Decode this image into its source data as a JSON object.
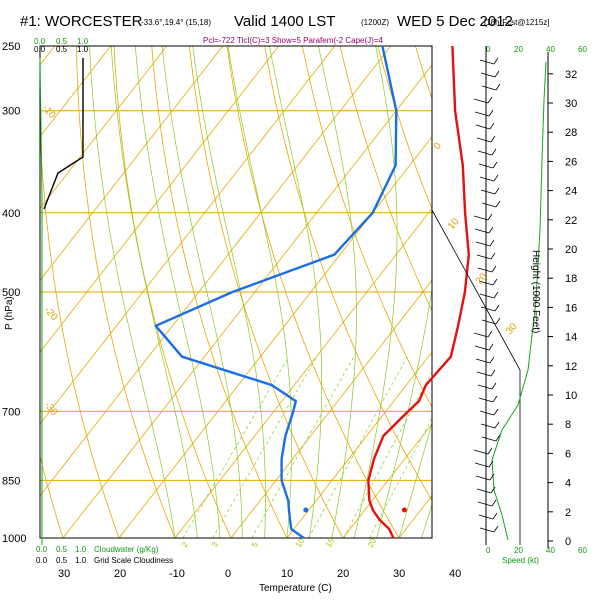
{
  "header": {
    "station": "#1: WORCESTER",
    "coords": "-33.6°,19.4° (15,18)",
    "valid": "Valid 1400 LST",
    "utc": "(1200Z)",
    "date": "WED 5 Dec 2012",
    "forecast": "[18hrFcst@1215z]",
    "indices": "Pcl=-722 Tlcl(C)=3 Show=5 Parafem(-2 Cape(J)=4"
  },
  "chart_data": {
    "type": "skew-t",
    "title": "#1: WORCESTER Valid 1400 LST WED 5 Dec 2012",
    "ylabel": "P (hPa)",
    "xlabel": "Temperature (C)",
    "right_label": "Height (1000 Feet)",
    "pressure_levels": [
      250,
      300,
      400,
      500,
      700,
      850,
      1000
    ],
    "pressure_range": [
      1000,
      250
    ],
    "temperature_ticks": [
      -10,
      0,
      10,
      20,
      30,
      40
    ],
    "temperature_ticks_left": [
      30,
      20
    ],
    "height_ticks": [
      0,
      2,
      4,
      6,
      8,
      10,
      12,
      14,
      16,
      18,
      20,
      22,
      24,
      26,
      28,
      30,
      32
    ],
    "isotherm_labels": [
      "0",
      "10",
      "20",
      "30"
    ],
    "isotherm_labels_left": [
      "-10",
      "-20",
      "-30"
    ],
    "mixing_ratio_labels": [
      "2",
      "3",
      "5",
      "10",
      "15",
      "20"
    ],
    "left_panel": {
      "top_labels": [
        "0.0",
        "0.5",
        "1.0"
      ],
      "bottom_labels": [
        "0.0",
        "0.5",
        "1.0"
      ],
      "bottom_axis": [
        "0.0",
        "0.5",
        "1.0"
      ],
      "cloud_water_label": "Cloudwater (g/Kg)",
      "grid_scale_label": "Grid Scale Cloudiness"
    },
    "right_panel": {
      "top_labels": [
        "0",
        "20",
        "40",
        "60"
      ],
      "bottom_labels": [
        "0",
        "20",
        "40",
        "60"
      ],
      "speed_label": "Speed (kt)"
    },
    "temperature": {
      "name": "Temperature",
      "points": [
        [
          1000,
          29.0
        ],
        [
          975,
          27.0
        ],
        [
          950,
          24.0
        ],
        [
          925,
          21.5
        ],
        [
          900,
          19.5
        ],
        [
          875,
          18.0
        ],
        [
          850,
          16.5
        ],
        [
          800,
          14.5
        ],
        [
          750,
          13.0
        ],
        [
          700,
          14.0
        ],
        [
          680,
          14.5
        ],
        [
          650,
          13.5
        ],
        [
          600,
          14.0
        ],
        [
          550,
          11.0
        ],
        [
          500,
          7.5
        ],
        [
          450,
          3.0
        ],
        [
          400,
          -3.5
        ],
        [
          350,
          -10.5
        ],
        [
          300,
          -19.5
        ],
        [
          250,
          -29.0
        ]
      ]
    },
    "dewpoint": {
      "name": "Dewpoint",
      "points": [
        [
          1000,
          13.0
        ],
        [
          975,
          9.5
        ],
        [
          950,
          8.0
        ],
        [
          925,
          6.5
        ],
        [
          900,
          5.0
        ],
        [
          850,
          1.0
        ],
        [
          800,
          -2.0
        ],
        [
          750,
          -4.5
        ],
        [
          700,
          -6.5
        ],
        [
          680,
          -7.5
        ],
        [
          650,
          -14.0
        ],
        [
          600,
          -34.0
        ],
        [
          550,
          -43.0
        ],
        [
          500,
          -34.0
        ],
        [
          450,
          -21.0
        ],
        [
          400,
          -20.0
        ],
        [
          350,
          -22.5
        ],
        [
          300,
          -30.0
        ],
        [
          250,
          -41.5
        ]
      ]
    }
  }
}
